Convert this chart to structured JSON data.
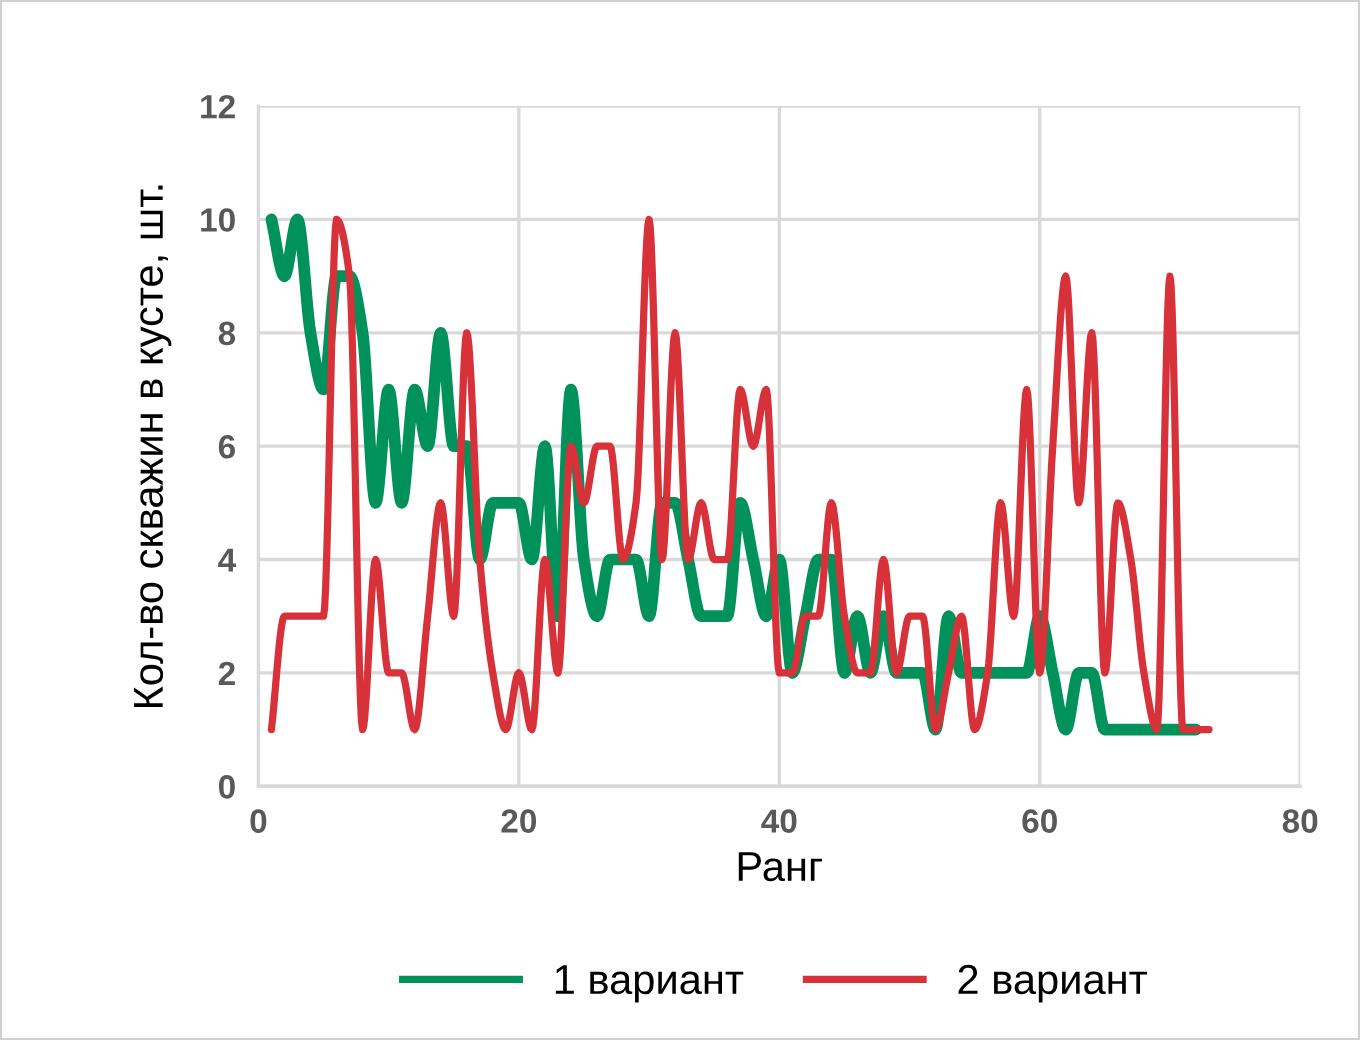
{
  "chart_data": {
    "type": "line",
    "xlabel": "Ранг",
    "ylabel": "Кол-во скважин в кусте, шт.",
    "xlim": [
      0,
      80
    ],
    "xticks": [
      0,
      20,
      40,
      60,
      80
    ],
    "ylim": [
      0,
      12
    ],
    "yticks": [
      0,
      2,
      4,
      6,
      8,
      10,
      12
    ],
    "grid": true,
    "legend": "bottom",
    "line_style": "solid",
    "marker": "none",
    "series": [
      {
        "name": "1 вариант",
        "color": "#00925a",
        "x": [
          1,
          2,
          3,
          4,
          5,
          6,
          7,
          8,
          9,
          10,
          11,
          12,
          13,
          14,
          15,
          16,
          17,
          18,
          19,
          20,
          21,
          22,
          23,
          24,
          25,
          26,
          27,
          28,
          29,
          30,
          31,
          32,
          33,
          34,
          35,
          36,
          37,
          38,
          39,
          40,
          41,
          42,
          43,
          44,
          45,
          46,
          47,
          48,
          49,
          50,
          51,
          52,
          53,
          54,
          55,
          56,
          57,
          58,
          59,
          60,
          61,
          62,
          63,
          64,
          65,
          66,
          67,
          68,
          69,
          70,
          71,
          72
        ],
        "values": [
          10,
          9,
          10,
          8,
          7,
          9,
          9,
          8,
          5,
          7,
          5,
          7,
          6,
          8,
          6,
          6,
          4,
          5,
          5,
          5,
          4,
          6,
          3,
          7,
          4,
          3,
          4,
          4,
          4,
          3,
          5,
          5,
          4,
          3,
          3,
          3,
          5,
          4,
          3,
          4,
          2,
          3,
          4,
          4,
          2,
          3,
          2,
          3,
          2,
          2,
          2,
          1,
          3,
          2,
          2,
          2,
          2,
          2,
          2,
          3,
          2,
          1,
          2,
          2,
          1,
          1,
          1,
          1,
          1,
          1,
          1,
          1
        ]
      },
      {
        "name": "2 вариант",
        "color": "#d7323a",
        "x": [
          1,
          2,
          3,
          4,
          5,
          6,
          7,
          8,
          9,
          10,
          11,
          12,
          13,
          14,
          15,
          16,
          17,
          18,
          19,
          20,
          21,
          22,
          23,
          24,
          25,
          26,
          27,
          28,
          29,
          30,
          31,
          32,
          33,
          34,
          35,
          36,
          37,
          38,
          39,
          40,
          41,
          42,
          43,
          44,
          45,
          46,
          47,
          48,
          49,
          50,
          51,
          52,
          53,
          54,
          55,
          56,
          57,
          58,
          59,
          60,
          61,
          62,
          63,
          64,
          65,
          66,
          67,
          68,
          69,
          70,
          71,
          72,
          73
        ],
        "values": [
          1,
          3,
          3,
          3,
          3,
          10,
          9,
          1,
          4,
          2,
          2,
          1,
          3,
          5,
          3,
          8,
          4,
          2,
          1,
          2,
          1,
          4,
          2,
          6,
          5,
          6,
          6,
          4,
          5,
          10,
          4,
          8,
          4,
          5,
          4,
          4,
          7,
          6,
          7,
          2,
          2,
          3,
          3,
          5,
          3,
          2,
          2,
          4,
          2,
          3,
          3,
          1,
          2,
          3,
          1,
          2,
          5,
          3,
          7,
          2,
          6,
          9,
          5,
          8,
          2,
          5,
          4,
          2,
          1,
          9,
          1,
          1,
          1
        ]
      }
    ]
  }
}
